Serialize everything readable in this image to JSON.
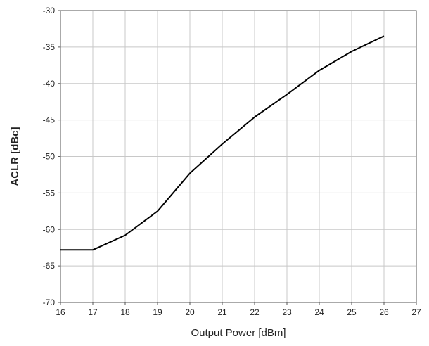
{
  "chart_data": {
    "type": "line",
    "title": "",
    "xlabel": "Output Power [dBm]",
    "ylabel": "ACLR [dBc]",
    "xlim": [
      16,
      27
    ],
    "ylim": [
      -70,
      -30
    ],
    "xticks": [
      16,
      17,
      18,
      19,
      20,
      21,
      22,
      23,
      24,
      25,
      26,
      27
    ],
    "yticks": [
      -30,
      -35,
      -40,
      -45,
      -50,
      -55,
      -60,
      -65,
      -70
    ],
    "grid": true,
    "series": [
      {
        "x": [
          16,
          17,
          18,
          19,
          20,
          21,
          22,
          23,
          24,
          25,
          26
        ],
        "values": [
          -62.8,
          -62.8,
          -60.8,
          -57.5,
          -52.3,
          -48.3,
          -44.6,
          -41.5,
          -38.2,
          -35.6,
          -33.5
        ]
      }
    ]
  }
}
